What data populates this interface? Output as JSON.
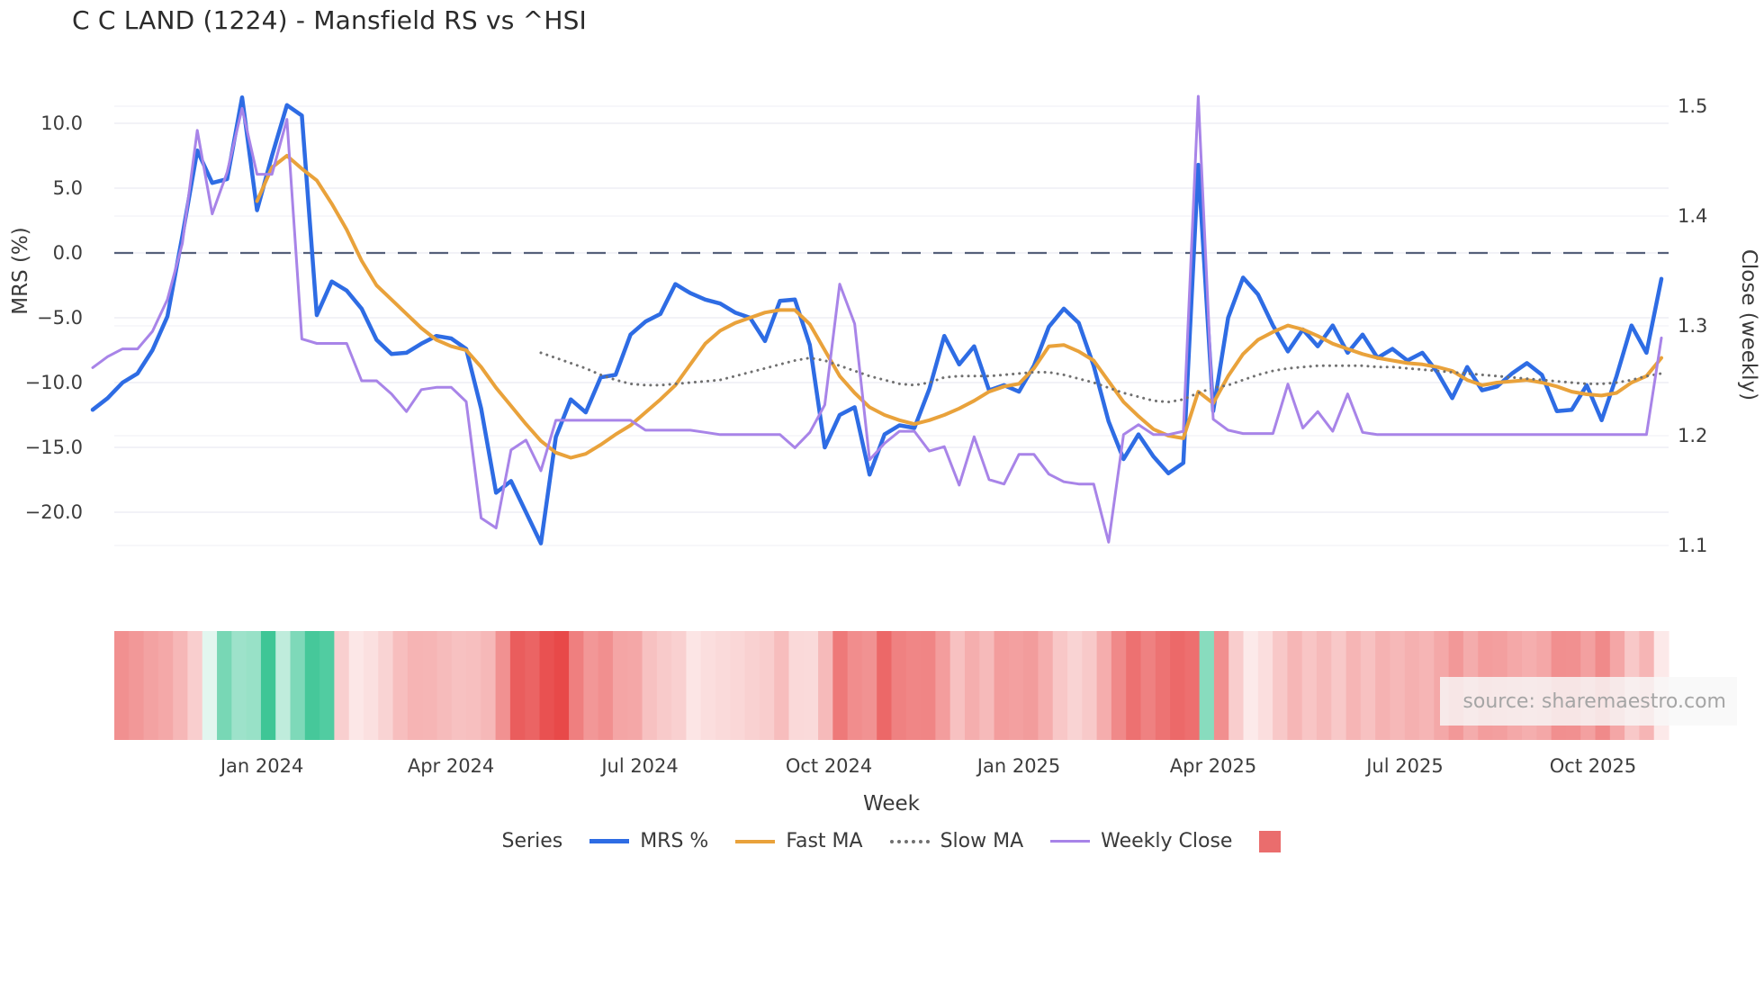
{
  "title": "C C LAND (1224) - Mansfield RS vs ^HSI",
  "source": "source: sharemaestro.com",
  "axes": {
    "left": {
      "title": "MRS (%)",
      "ticks": [
        {
          "label": "10.0",
          "value": 10
        },
        {
          "label": "5.0",
          "value": 5
        },
        {
          "label": "0.0",
          "value": 0
        },
        {
          "label": "−5.0",
          "value": -5
        },
        {
          "label": "−10.0",
          "value": -10
        },
        {
          "label": "−15.0",
          "value": -15
        },
        {
          "label": "−20.0",
          "value": -20
        }
      ]
    },
    "right": {
      "title": "Close (weekly)",
      "ticks": [
        {
          "label": "1.5",
          "value": 1.5
        },
        {
          "label": "1.4",
          "value": 1.4
        },
        {
          "label": "1.3",
          "value": 1.3
        },
        {
          "label": "1.2",
          "value": 1.2
        },
        {
          "label": "1.1",
          "value": 1.1
        }
      ]
    },
    "x": {
      "title": "Week"
    }
  },
  "legend": {
    "title": "Series",
    "items": [
      {
        "label": "MRS %",
        "color": "#2e6ce4",
        "style": "solid"
      },
      {
        "label": "Fast MA",
        "color": "#e9a23b",
        "style": "solid"
      },
      {
        "label": "Slow MA",
        "color": "#707070",
        "style": "dotted"
      },
      {
        "label": "Weekly Close",
        "color": "#a884e8",
        "style": "solid"
      }
    ],
    "heat_swatch_color": "#ea6d6d"
  },
  "colors": {
    "mrs": "#2e6ce4",
    "fast_ma": "#e9a23b",
    "slow_ma": "#707070",
    "weekly_close": "#a884e8",
    "zero_line": "#55607a",
    "grid": "#ebebf2",
    "grid_right": "#f2f2f7",
    "heat_positive": "#3ec696",
    "heat_negative": "#e84949",
    "tick_text": "#3d3d3d"
  },
  "chart_data": {
    "type": "line",
    "title": "C C LAND (1224) - Mansfield RS vs ^HSI",
    "xlabel": "Week",
    "ylabel_left": "MRS (%)",
    "ylabel_right": "Close (weekly)",
    "left_ylim": [
      -23,
      13
    ],
    "right_ylim": [
      1.09,
      1.52
    ],
    "grid": true,
    "zero_dashed_line": true,
    "legend_position": "bottom",
    "x_ticks": [
      {
        "label": "Jan 2024",
        "i": 11.33
      },
      {
        "label": "Apr 2024",
        "i": 23.98
      },
      {
        "label": "Jul 2024",
        "i": 36.63
      },
      {
        "label": "Oct 2024",
        "i": 49.28
      },
      {
        "label": "Jan 2025",
        "i": 61.99
      },
      {
        "label": "Apr 2025",
        "i": 75.0
      },
      {
        "label": "Jul 2025",
        "i": 87.83
      },
      {
        "label": "Oct 2025",
        "i": 100.42
      }
    ],
    "series": [
      {
        "name": "MRS %",
        "axis": "left",
        "color": "#2e6ce4",
        "style": "solid",
        "width": 4.5,
        "values": [
          -12.1,
          -11.2,
          -10.0,
          -9.3,
          -7.5,
          -4.9,
          1.3,
          7.9,
          5.4,
          5.7,
          12.0,
          3.3,
          7.5,
          11.4,
          10.6,
          -4.8,
          -2.2,
          -2.9,
          -4.3,
          -6.7,
          -7.8,
          -7.7,
          -7.0,
          -6.4,
          -6.6,
          -7.4,
          -12.0,
          -18.5,
          -17.6,
          -20.0,
          -22.4,
          -14.2,
          -11.3,
          -12.3,
          -9.6,
          -9.4,
          -6.3,
          -5.3,
          -4.7,
          -2.4,
          -3.1,
          -3.6,
          -3.9,
          -4.6,
          -5.0,
          -6.8,
          -3.7,
          -3.6,
          -7.1,
          -15.0,
          -12.5,
          -11.9,
          -17.1,
          -14.0,
          -13.3,
          -13.5,
          -10.5,
          -6.4,
          -8.6,
          -7.2,
          -10.6,
          -10.2,
          -10.7,
          -8.7,
          -5.7,
          -4.3,
          -5.4,
          -8.7,
          -13.0,
          -15.9,
          -14.0,
          -15.7,
          -17.0,
          -16.2,
          6.8,
          -12.2,
          -5.0,
          -1.9,
          -3.2,
          -5.6,
          -7.6,
          -5.9,
          -7.2,
          -5.6,
          -7.7,
          -6.3,
          -8.1,
          -7.4,
          -8.3,
          -7.7,
          -9.2,
          -11.2,
          -8.8,
          -10.6,
          -10.3,
          -9.3,
          -8.5,
          -9.4,
          -12.2,
          -12.1,
          -10.2,
          -12.9,
          -9.5,
          -5.6,
          -7.7,
          -2.0
        ]
      },
      {
        "name": "Fast MA",
        "axis": "left",
        "color": "#e9a23b",
        "style": "solid",
        "width": 4,
        "values": [
          null,
          null,
          null,
          null,
          null,
          null,
          null,
          null,
          null,
          null,
          null,
          4.0,
          6.6,
          7.5,
          6.5,
          5.6,
          3.8,
          1.8,
          -0.6,
          -2.5,
          -3.6,
          -4.7,
          -5.8,
          -6.7,
          -7.2,
          -7.5,
          -8.8,
          -10.4,
          -11.8,
          -13.2,
          -14.5,
          -15.4,
          -15.8,
          -15.5,
          -14.8,
          -14.0,
          -13.3,
          -12.3,
          -11.3,
          -10.2,
          -8.6,
          -7.0,
          -6.0,
          -5.4,
          -5.0,
          -4.6,
          -4.4,
          -4.4,
          -5.5,
          -7.5,
          -9.5,
          -10.8,
          -11.9,
          -12.5,
          -12.9,
          -13.2,
          -12.9,
          -12.5,
          -12.0,
          -11.4,
          -10.7,
          -10.3,
          -10.1,
          -8.9,
          -7.2,
          -7.1,
          -7.6,
          -8.3,
          -9.9,
          -11.5,
          -12.6,
          -13.6,
          -14.1,
          -14.3,
          -10.7,
          -11.6,
          -9.5,
          -7.8,
          -6.7,
          -6.1,
          -5.6,
          -5.9,
          -6.4,
          -7.0,
          -7.4,
          -7.8,
          -8.1,
          -8.3,
          -8.5,
          -8.6,
          -8.8,
          -9.1,
          -9.8,
          -10.2,
          -10.0,
          -9.9,
          -9.8,
          -10.0,
          -10.3,
          -10.7,
          -10.9,
          -11.0,
          -10.8,
          -10.0,
          -9.5,
          -8.1
        ]
      },
      {
        "name": "Slow MA",
        "axis": "left",
        "color": "#707070",
        "style": "dotted",
        "width": 3,
        "values": [
          null,
          null,
          null,
          null,
          null,
          null,
          null,
          null,
          null,
          null,
          null,
          null,
          null,
          null,
          null,
          null,
          null,
          null,
          null,
          null,
          null,
          null,
          null,
          null,
          null,
          null,
          null,
          null,
          null,
          null,
          -7.7,
          -8.1,
          -8.5,
          -8.9,
          -9.4,
          -9.8,
          -10.1,
          -10.2,
          -10.2,
          -10.1,
          -10.0,
          -9.9,
          -9.8,
          -9.5,
          -9.2,
          -8.9,
          -8.6,
          -8.3,
          -8.1,
          -8.3,
          -8.7,
          -9.1,
          -9.5,
          -9.8,
          -10.1,
          -10.2,
          -10.0,
          -9.6,
          -9.5,
          -9.5,
          -9.5,
          -9.4,
          -9.3,
          -9.2,
          -9.2,
          -9.4,
          -9.7,
          -10.0,
          -10.4,
          -10.8,
          -11.1,
          -11.4,
          -11.5,
          -11.3,
          -10.8,
          -10.4,
          -10.2,
          -9.8,
          -9.4,
          -9.1,
          -8.9,
          -8.8,
          -8.7,
          -8.7,
          -8.7,
          -8.7,
          -8.8,
          -8.8,
          -8.9,
          -9.0,
          -9.1,
          -9.2,
          -9.3,
          -9.4,
          -9.5,
          -9.6,
          -9.7,
          -9.8,
          -9.9,
          -10.0,
          -10.1,
          -10.1,
          -10.0,
          -9.8,
          -9.5,
          -9.3
        ]
      },
      {
        "name": "Weekly Close",
        "axis": "right",
        "color": "#a884e8",
        "style": "solid",
        "width": 3,
        "values": [
          1.262,
          1.272,
          1.279,
          1.279,
          1.295,
          1.324,
          1.375,
          1.478,
          1.402,
          1.44,
          1.498,
          1.438,
          1.438,
          1.488,
          1.288,
          1.284,
          1.284,
          1.284,
          1.25,
          1.25,
          1.238,
          1.222,
          1.242,
          1.244,
          1.244,
          1.231,
          1.125,
          1.116,
          1.187,
          1.196,
          1.168,
          1.214,
          1.214,
          1.214,
          1.214,
          1.214,
          1.214,
          1.205,
          1.205,
          1.205,
          1.205,
          1.203,
          1.201,
          1.201,
          1.201,
          1.201,
          1.201,
          1.189,
          1.203,
          1.228,
          1.338,
          1.302,
          1.178,
          1.193,
          1.204,
          1.204,
          1.186,
          1.19,
          1.155,
          1.199,
          1.16,
          1.156,
          1.183,
          1.183,
          1.165,
          1.158,
          1.156,
          1.156,
          1.103,
          1.201,
          1.21,
          1.201,
          1.201,
          1.204,
          1.509,
          1.215,
          1.205,
          1.202,
          1.202,
          1.202,
          1.247,
          1.207,
          1.222,
          1.204,
          1.238,
          1.203,
          1.201,
          1.201,
          1.201,
          1.201,
          1.201,
          1.201,
          1.201,
          1.201,
          1.201,
          1.201,
          1.201,
          1.201,
          1.201,
          1.201,
          1.201,
          1.201,
          1.201,
          1.201,
          1.201,
          1.289
        ]
      }
    ],
    "heatmap_strip": {
      "derived_from": "MRS %",
      "description": "weekly cells colored by MRS value, green positive / red negative",
      "positive_color": "#3ec696",
      "negative_color": "#e84949"
    }
  }
}
